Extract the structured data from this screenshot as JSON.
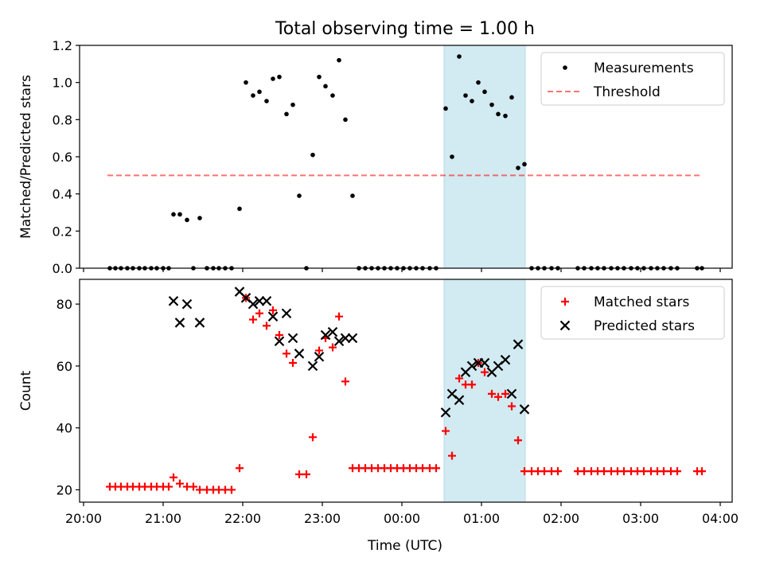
{
  "chart_data": {
    "type": "scatter",
    "title": "Total observing time = 1.00 h",
    "xlabel": "Time (UTC)",
    "x_unit": "hours since 20:00 UTC on the plotted night",
    "x_ticks": [
      {
        "x": 0,
        "label": "20:00"
      },
      {
        "x": 1,
        "label": "21:00"
      },
      {
        "x": 2,
        "label": "22:00"
      },
      {
        "x": 3,
        "label": "23:00"
      },
      {
        "x": 4,
        "label": "00:00"
      },
      {
        "x": 5,
        "label": "01:00"
      },
      {
        "x": 6,
        "label": "02:00"
      },
      {
        "x": 7,
        "label": "03:00"
      },
      {
        "x": 8,
        "label": "04:00"
      }
    ],
    "xlim": [
      -0.05,
      8.15
    ],
    "highlight_span": {
      "x0": 4.53,
      "x1": 5.55,
      "color": "#add8e6"
    },
    "panels": [
      {
        "id": "ratio",
        "ylabel": "Matched/Predicted stars",
        "ylim": [
          0,
          1.2
        ],
        "y_ticks": [
          "0.0",
          "0.2",
          "0.4",
          "0.6",
          "0.8",
          "1.0",
          "1.2"
        ],
        "y_tick_values": [
          0,
          0.2,
          0.4,
          0.6,
          0.8,
          1.0,
          1.2
        ],
        "legend": {
          "position": "top-right",
          "entries": [
            {
              "label": "Measurements",
              "marker": "dot",
              "color": "#000000"
            },
            {
              "label": "Threshold",
              "marker": "dashed-line",
              "color": "#ff0000"
            }
          ]
        },
        "threshold": {
          "y": 0.5,
          "x0": 0.3,
          "x1": 7.75,
          "color": "#ff0000"
        },
        "series": [
          {
            "name": "Measurements",
            "marker": "dot",
            "color": "#000000",
            "points": [
              [
                0.33,
                0
              ],
              [
                0.4,
                0
              ],
              [
                0.47,
                0
              ],
              [
                0.55,
                0
              ],
              [
                0.62,
                0
              ],
              [
                0.7,
                0
              ],
              [
                0.77,
                0
              ],
              [
                0.85,
                0
              ],
              [
                0.92,
                0
              ],
              [
                1.0,
                0
              ],
              [
                1.07,
                0
              ],
              [
                1.13,
                0.29
              ],
              [
                1.21,
                0.29
              ],
              [
                1.3,
                0.26
              ],
              [
                1.38,
                0
              ],
              [
                1.46,
                0.27
              ],
              [
                1.55,
                0
              ],
              [
                1.63,
                0
              ],
              [
                1.7,
                0
              ],
              [
                1.78,
                0
              ],
              [
                1.86,
                0
              ],
              [
                1.96,
                0.32
              ],
              [
                2.04,
                1.0
              ],
              [
                2.13,
                0.93
              ],
              [
                2.21,
                0.95
              ],
              [
                2.3,
                0.9
              ],
              [
                2.38,
                1.02
              ],
              [
                2.46,
                1.03
              ],
              [
                2.55,
                0.83
              ],
              [
                2.63,
                0.88
              ],
              [
                2.71,
                0.39
              ],
              [
                2.8,
                0
              ],
              [
                2.88,
                0.61
              ],
              [
                2.96,
                1.03
              ],
              [
                3.04,
                0.98
              ],
              [
                3.13,
                0.93
              ],
              [
                3.21,
                1.12
              ],
              [
                3.29,
                0.8
              ],
              [
                3.38,
                0.39
              ],
              [
                3.46,
                0
              ],
              [
                3.54,
                0
              ],
              [
                3.62,
                0
              ],
              [
                3.7,
                0
              ],
              [
                3.78,
                0
              ],
              [
                3.86,
                0
              ],
              [
                3.94,
                0
              ],
              [
                4.02,
                0
              ],
              [
                4.1,
                0
              ],
              [
                4.18,
                0
              ],
              [
                4.26,
                0
              ],
              [
                4.35,
                0
              ],
              [
                4.43,
                0
              ],
              [
                4.55,
                0.86
              ],
              [
                4.63,
                0.6
              ],
              [
                4.72,
                1.14
              ],
              [
                4.8,
                0.93
              ],
              [
                4.88,
                0.9
              ],
              [
                4.96,
                1.0
              ],
              [
                5.04,
                0.95
              ],
              [
                5.13,
                0.88
              ],
              [
                5.21,
                0.83
              ],
              [
                5.3,
                0.82
              ],
              [
                5.38,
                0.92
              ],
              [
                5.46,
                0.54
              ],
              [
                5.54,
                0.56
              ],
              [
                5.63,
                0
              ],
              [
                5.71,
                0
              ],
              [
                5.79,
                0
              ],
              [
                5.88,
                0
              ],
              [
                5.96,
                0
              ],
              [
                6.21,
                0
              ],
              [
                6.29,
                0
              ],
              [
                6.38,
                0
              ],
              [
                6.46,
                0
              ],
              [
                6.54,
                0
              ],
              [
                6.63,
                0
              ],
              [
                6.71,
                0
              ],
              [
                6.79,
                0
              ],
              [
                6.88,
                0
              ],
              [
                6.96,
                0
              ],
              [
                7.04,
                0
              ],
              [
                7.13,
                0
              ],
              [
                7.21,
                0
              ],
              [
                7.29,
                0
              ],
              [
                7.38,
                0
              ],
              [
                7.46,
                0
              ],
              [
                7.71,
                0
              ],
              [
                7.77,
                0
              ]
            ]
          }
        ]
      },
      {
        "id": "counts",
        "ylabel": "Count",
        "ylim": [
          16,
          88
        ],
        "y_ticks": [
          "20",
          "40",
          "60",
          "80"
        ],
        "y_tick_values": [
          20,
          40,
          60,
          80
        ],
        "legend": {
          "position": "top-right",
          "entries": [
            {
              "label": "Matched stars",
              "marker": "plus",
              "color": "#ff0000"
            },
            {
              "label": "Predicted stars",
              "marker": "x",
              "color": "#000000"
            }
          ]
        },
        "series": [
          {
            "name": "Matched stars",
            "marker": "plus",
            "color": "#ff0000",
            "points": [
              [
                0.33,
                21
              ],
              [
                0.4,
                21
              ],
              [
                0.47,
                21
              ],
              [
                0.55,
                21
              ],
              [
                0.62,
                21
              ],
              [
                0.7,
                21
              ],
              [
                0.77,
                21
              ],
              [
                0.85,
                21
              ],
              [
                0.92,
                21
              ],
              [
                1.0,
                21
              ],
              [
                1.07,
                21
              ],
              [
                1.13,
                24
              ],
              [
                1.21,
                22
              ],
              [
                1.3,
                21
              ],
              [
                1.38,
                21
              ],
              [
                1.46,
                20
              ],
              [
                1.55,
                20
              ],
              [
                1.63,
                20
              ],
              [
                1.7,
                20
              ],
              [
                1.78,
                20
              ],
              [
                1.86,
                20
              ],
              [
                1.96,
                27
              ],
              [
                2.04,
                82
              ],
              [
                2.13,
                75
              ],
              [
                2.21,
                77
              ],
              [
                2.3,
                73
              ],
              [
                2.38,
                78
              ],
              [
                2.46,
                70
              ],
              [
                2.55,
                64
              ],
              [
                2.63,
                61
              ],
              [
                2.71,
                25
              ],
              [
                2.8,
                25
              ],
              [
                2.88,
                37
              ],
              [
                2.96,
                65
              ],
              [
                3.04,
                69
              ],
              [
                3.13,
                66
              ],
              [
                3.21,
                76
              ],
              [
                3.29,
                55
              ],
              [
                3.38,
                27
              ],
              [
                3.46,
                27
              ],
              [
                3.54,
                27
              ],
              [
                3.62,
                27
              ],
              [
                3.7,
                27
              ],
              [
                3.78,
                27
              ],
              [
                3.86,
                27
              ],
              [
                3.94,
                27
              ],
              [
                4.02,
                27
              ],
              [
                4.1,
                27
              ],
              [
                4.18,
                27
              ],
              [
                4.26,
                27
              ],
              [
                4.35,
                27
              ],
              [
                4.43,
                27
              ],
              [
                4.55,
                39
              ],
              [
                4.63,
                31
              ],
              [
                4.72,
                56
              ],
              [
                4.8,
                54
              ],
              [
                4.88,
                54
              ],
              [
                4.96,
                61
              ],
              [
                5.04,
                58
              ],
              [
                5.13,
                51
              ],
              [
                5.21,
                50
              ],
              [
                5.3,
                51
              ],
              [
                5.38,
                47
              ],
              [
                5.46,
                36
              ],
              [
                5.54,
                26
              ],
              [
                5.63,
                26
              ],
              [
                5.71,
                26
              ],
              [
                5.79,
                26
              ],
              [
                5.88,
                26
              ],
              [
                5.96,
                26
              ],
              [
                6.21,
                26
              ],
              [
                6.29,
                26
              ],
              [
                6.38,
                26
              ],
              [
                6.46,
                26
              ],
              [
                6.54,
                26
              ],
              [
                6.63,
                26
              ],
              [
                6.71,
                26
              ],
              [
                6.79,
                26
              ],
              [
                6.88,
                26
              ],
              [
                6.96,
                26
              ],
              [
                7.04,
                26
              ],
              [
                7.13,
                26
              ],
              [
                7.21,
                26
              ],
              [
                7.29,
                26
              ],
              [
                7.38,
                26
              ],
              [
                7.46,
                26
              ],
              [
                7.71,
                26
              ],
              [
                7.77,
                26
              ]
            ]
          },
          {
            "name": "Predicted stars",
            "marker": "x",
            "color": "#000000",
            "points": [
              [
                1.13,
                81
              ],
              [
                1.21,
                74
              ],
              [
                1.3,
                80
              ],
              [
                1.46,
                74
              ],
              [
                1.96,
                84
              ],
              [
                2.04,
                82
              ],
              [
                2.13,
                80
              ],
              [
                2.21,
                81
              ],
              [
                2.3,
                81
              ],
              [
                2.38,
                76
              ],
              [
                2.46,
                68
              ],
              [
                2.55,
                77
              ],
              [
                2.63,
                69
              ],
              [
                2.71,
                64
              ],
              [
                2.88,
                60
              ],
              [
                2.96,
                63
              ],
              [
                3.04,
                70
              ],
              [
                3.13,
                71
              ],
              [
                3.21,
                68
              ],
              [
                3.29,
                69
              ],
              [
                3.38,
                69
              ],
              [
                4.55,
                45
              ],
              [
                4.63,
                51
              ],
              [
                4.72,
                49
              ],
              [
                4.8,
                58
              ],
              [
                4.88,
                60
              ],
              [
                4.96,
                61
              ],
              [
                5.04,
                61
              ],
              [
                5.13,
                58
              ],
              [
                5.21,
                60
              ],
              [
                5.3,
                62
              ],
              [
                5.38,
                51
              ],
              [
                5.46,
                67
              ],
              [
                5.54,
                46
              ]
            ]
          }
        ]
      }
    ]
  }
}
